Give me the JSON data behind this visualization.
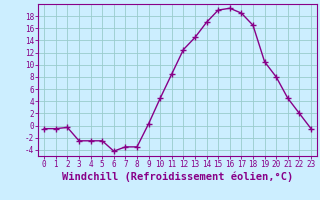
{
  "x": [
    0,
    1,
    2,
    3,
    4,
    5,
    6,
    7,
    8,
    9,
    10,
    11,
    12,
    13,
    14,
    15,
    16,
    17,
    18,
    19,
    20,
    21,
    22,
    23
  ],
  "y": [
    -0.5,
    -0.5,
    -0.3,
    -2.5,
    -2.5,
    -2.5,
    -4.2,
    -3.5,
    -3.5,
    0.3,
    4.5,
    8.5,
    12.5,
    14.5,
    17.0,
    19.0,
    19.3,
    18.5,
    16.5,
    10.5,
    8.0,
    4.5,
    2.0,
    -0.5
  ],
  "line_color": "#880088",
  "marker": "+",
  "marker_size": 4,
  "marker_lw": 1.0,
  "bg_color": "#cceeff",
  "grid_color": "#99cccc",
  "xlabel": "Windchill (Refroidissement éolien,°C)",
  "xlabel_fontsize": 7.5,
  "ylim": [
    -5,
    20
  ],
  "xlim": [
    -0.5,
    23.5
  ],
  "yticks": [
    -4,
    -2,
    0,
    2,
    4,
    6,
    8,
    10,
    12,
    14,
    16,
    18
  ],
  "xticks": [
    0,
    1,
    2,
    3,
    4,
    5,
    6,
    7,
    8,
    9,
    10,
    11,
    12,
    13,
    14,
    15,
    16,
    17,
    18,
    19,
    20,
    21,
    22,
    23
  ],
  "tick_color": "#880088",
  "spine_color": "#880088",
  "linewidth": 1.0
}
